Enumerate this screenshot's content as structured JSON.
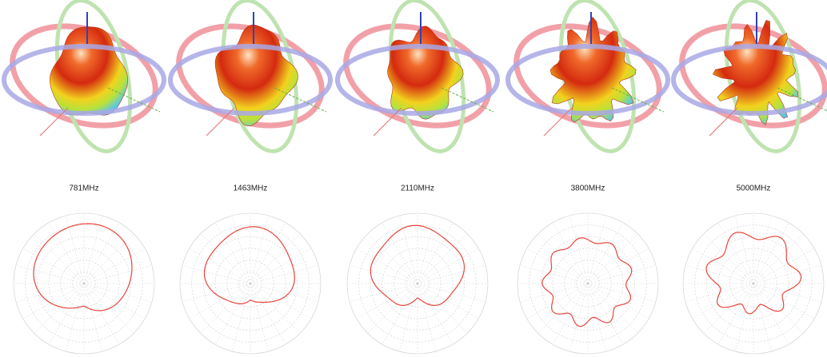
{
  "panels": [
    {
      "label": "781MHz"
    },
    {
      "label": "1463MHz"
    },
    {
      "label": "2110MHz"
    },
    {
      "label": "3800MHz"
    },
    {
      "label": "5000MHz"
    }
  ]
}
